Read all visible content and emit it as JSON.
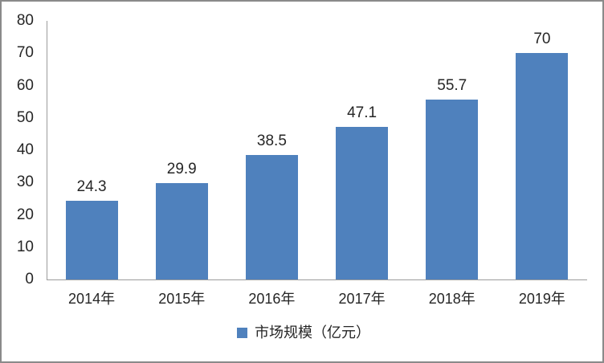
{
  "chart_data": {
    "type": "bar",
    "title": "",
    "xlabel": "",
    "ylabel": "",
    "categories": [
      "2014年",
      "2015年",
      "2016年",
      "2017年",
      "2018年",
      "2019年"
    ],
    "values": [
      24.3,
      29.9,
      38.5,
      47.1,
      55.7,
      70
    ],
    "value_labels": [
      "24.3",
      "29.9",
      "38.5",
      "47.1",
      "55.7",
      "70"
    ],
    "ylim": [
      0,
      80
    ],
    "yticks": [
      0,
      10,
      20,
      30,
      40,
      50,
      60,
      70,
      80
    ],
    "grid": false,
    "legend": "市场规模（亿元）",
    "legend_position": "bottom",
    "bar_color": "#4F81BD",
    "axis_color": "#9c9c9c",
    "text_color": "#262626",
    "frame_color": "#8a8a8a",
    "background_color": "#ffffff"
  }
}
